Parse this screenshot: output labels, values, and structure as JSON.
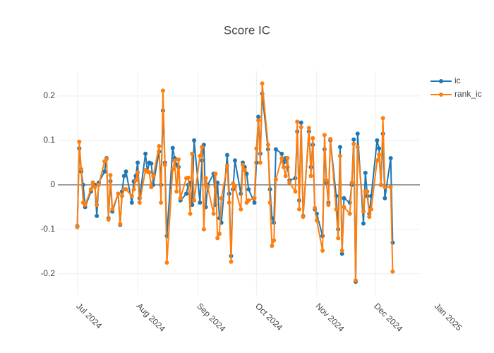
{
  "chart_data": {
    "type": "line",
    "title": "Score IC",
    "x": [
      "2024-07-01",
      "2024-07-02",
      "2024-07-03",
      "2024-07-04",
      "2024-07-05",
      "2024-07-08",
      "2024-07-09",
      "2024-07-10",
      "2024-07-11",
      "2024-07-12",
      "2024-07-15",
      "2024-07-16",
      "2024-07-17",
      "2024-07-18",
      "2024-07-19",
      "2024-07-22",
      "2024-07-23",
      "2024-07-24",
      "2024-07-25",
      "2024-07-26",
      "2024-07-29",
      "2024-07-30",
      "2024-07-31",
      "2024-08-01",
      "2024-08-02",
      "2024-08-05",
      "2024-08-06",
      "2024-08-07",
      "2024-08-08",
      "2024-08-09",
      "2024-08-12",
      "2024-08-13",
      "2024-08-14",
      "2024-08-15",
      "2024-08-16",
      "2024-08-19",
      "2024-08-20",
      "2024-08-21",
      "2024-08-22",
      "2024-08-23",
      "2024-08-26",
      "2024-08-27",
      "2024-08-28",
      "2024-08-29",
      "2024-08-30",
      "2024-09-02",
      "2024-09-03",
      "2024-09-04",
      "2024-09-05",
      "2024-09-06",
      "2024-09-09",
      "2024-09-10",
      "2024-09-11",
      "2024-09-12",
      "2024-09-13",
      "2024-09-16",
      "2024-09-17",
      "2024-09-18",
      "2024-09-19",
      "2024-09-20",
      "2024-09-23",
      "2024-09-24",
      "2024-09-25",
      "2024-09-26",
      "2024-09-27",
      "2024-09-30",
      "2024-10-01",
      "2024-10-02",
      "2024-10-03",
      "2024-10-04",
      "2024-10-07",
      "2024-10-08",
      "2024-10-09",
      "2024-10-10",
      "2024-10-11",
      "2024-10-14",
      "2024-10-15",
      "2024-10-16",
      "2024-10-17",
      "2024-10-18",
      "2024-10-21",
      "2024-10-22",
      "2024-10-23",
      "2024-10-24",
      "2024-10-25",
      "2024-10-28",
      "2024-10-29",
      "2024-10-30",
      "2024-10-31",
      "2024-11-01",
      "2024-11-04",
      "2024-11-05",
      "2024-11-06",
      "2024-11-07",
      "2024-11-08",
      "2024-11-11",
      "2024-11-12",
      "2024-11-13",
      "2024-11-14",
      "2024-11-15",
      "2024-11-18",
      "2024-11-19",
      "2024-11-20",
      "2024-11-21",
      "2024-11-22",
      "2024-11-25",
      "2024-11-26",
      "2024-11-27",
      "2024-11-28",
      "2024-11-29",
      "2024-12-02",
      "2024-12-03",
      "2024-12-04",
      "2024-12-05",
      "2024-12-06",
      "2024-12-09",
      "2024-12-10"
    ],
    "series": [
      {
        "name": "ic",
        "color": "#1f77b4",
        "values": [
          -0.093,
          0.082,
          0.03,
          0.0,
          -0.05,
          -0.015,
          0.005,
          0.0,
          -0.07,
          0.005,
          0.03,
          0.06,
          -0.075,
          0.008,
          -0.06,
          -0.02,
          -0.09,
          -0.015,
          0.02,
          0.03,
          -0.04,
          0.008,
          0.02,
          0.05,
          -0.03,
          0.07,
          0.03,
          0.05,
          0.048,
          0.0,
          0.075,
          0.0,
          0.167,
          0.05,
          -0.115,
          0.083,
          0.06,
          0.045,
          0.04,
          -0.035,
          -0.02,
          0.0,
          0.005,
          -0.045,
          0.1,
          -0.04,
          0.055,
          0.09,
          -0.05,
          0.0,
          0.025,
          -0.045,
          0.005,
          -0.075,
          -0.085,
          0.067,
          -0.02,
          -0.16,
          -0.01,
          0.055,
          -0.02,
          0.05,
          0.04,
          0.025,
          -0.01,
          -0.04,
          0.05,
          0.153,
          0.07,
          0.205,
          0.08,
          -0.01,
          -0.075,
          -0.085,
          0.08,
          0.07,
          0.05,
          0.06,
          0.04,
          0.01,
          0.015,
          0.12,
          -0.035,
          0.14,
          -0.07,
          0.12,
          0.04,
          0.09,
          -0.055,
          -0.065,
          -0.115,
          0.08,
          0.005,
          -0.04,
          0.1,
          -0.025,
          -0.1,
          0.085,
          -0.155,
          -0.03,
          -0.04,
          0.0,
          0.102,
          -0.218,
          0.115,
          -0.087,
          0.027,
          -0.025,
          -0.065,
          -0.025,
          0.1,
          0.082,
          0.0,
          0.115,
          -0.03,
          0.06,
          -0.13
        ]
      },
      {
        "name": "rank_ic",
        "color": "#ff7f0e",
        "values": [
          -0.095,
          0.097,
          0.035,
          -0.04,
          -0.045,
          -0.01,
          0.005,
          -0.005,
          -0.045,
          0.0,
          0.053,
          0.058,
          -0.078,
          0.022,
          -0.055,
          -0.02,
          -0.088,
          -0.025,
          -0.01,
          -0.01,
          -0.025,
          -0.01,
          0.01,
          0.028,
          -0.04,
          0.033,
          0.03,
          0.028,
          -0.005,
          0.02,
          0.087,
          -0.04,
          0.212,
          0.045,
          -0.175,
          0.035,
          0.055,
          -0.015,
          0.057,
          -0.03,
          0.015,
          0.016,
          -0.065,
          0.07,
          -0.035,
          0.065,
          0.085,
          -0.1,
          0.015,
          -0.005,
          -0.065,
          0.025,
          -0.12,
          -0.11,
          -0.03,
          0.043,
          -0.04,
          -0.173,
          0.003,
          -0.005,
          -0.055,
          0.045,
          0.033,
          -0.04,
          -0.035,
          -0.03,
          0.082,
          0.145,
          0.05,
          0.228,
          0.09,
          -0.04,
          -0.137,
          -0.125,
          0.012,
          0.06,
          0.04,
          0.02,
          0.06,
          0.005,
          -0.015,
          0.142,
          -0.055,
          0.13,
          -0.072,
          0.128,
          0.02,
          0.105,
          -0.052,
          -0.08,
          -0.148,
          0.112,
          0.01,
          -0.045,
          0.103,
          -0.055,
          -0.12,
          0.065,
          -0.148,
          -0.05,
          -0.065,
          0.005,
          0.092,
          -0.215,
          0.085,
          -0.06,
          -0.015,
          -0.015,
          -0.072,
          -0.055,
          0.055,
          0.068,
          0.0,
          0.15,
          -0.005,
          -0.005,
          -0.195
        ]
      }
    ],
    "xlim": [
      "2024-06-21",
      "2024-12-24"
    ],
    "xticks": [
      {
        "value": "2024-07-01",
        "label": "Jul 2024"
      },
      {
        "value": "2024-08-01",
        "label": "Aug 2024"
      },
      {
        "value": "2024-09-01",
        "label": "Sep 2024"
      },
      {
        "value": "2024-10-01",
        "label": "Oct 2024"
      },
      {
        "value": "2024-11-01",
        "label": "Nov 2024"
      },
      {
        "value": "2024-12-01",
        "label": "Dec 2024"
      },
      {
        "value": "2025-01-01",
        "label": "Jan 2025"
      }
    ],
    "ylim": [
      -0.248,
      0.257
    ],
    "yticks": [
      -0.2,
      -0.1,
      0,
      0.1,
      0.2
    ],
    "grid": true,
    "zeroline": true,
    "legend": "top-right"
  }
}
